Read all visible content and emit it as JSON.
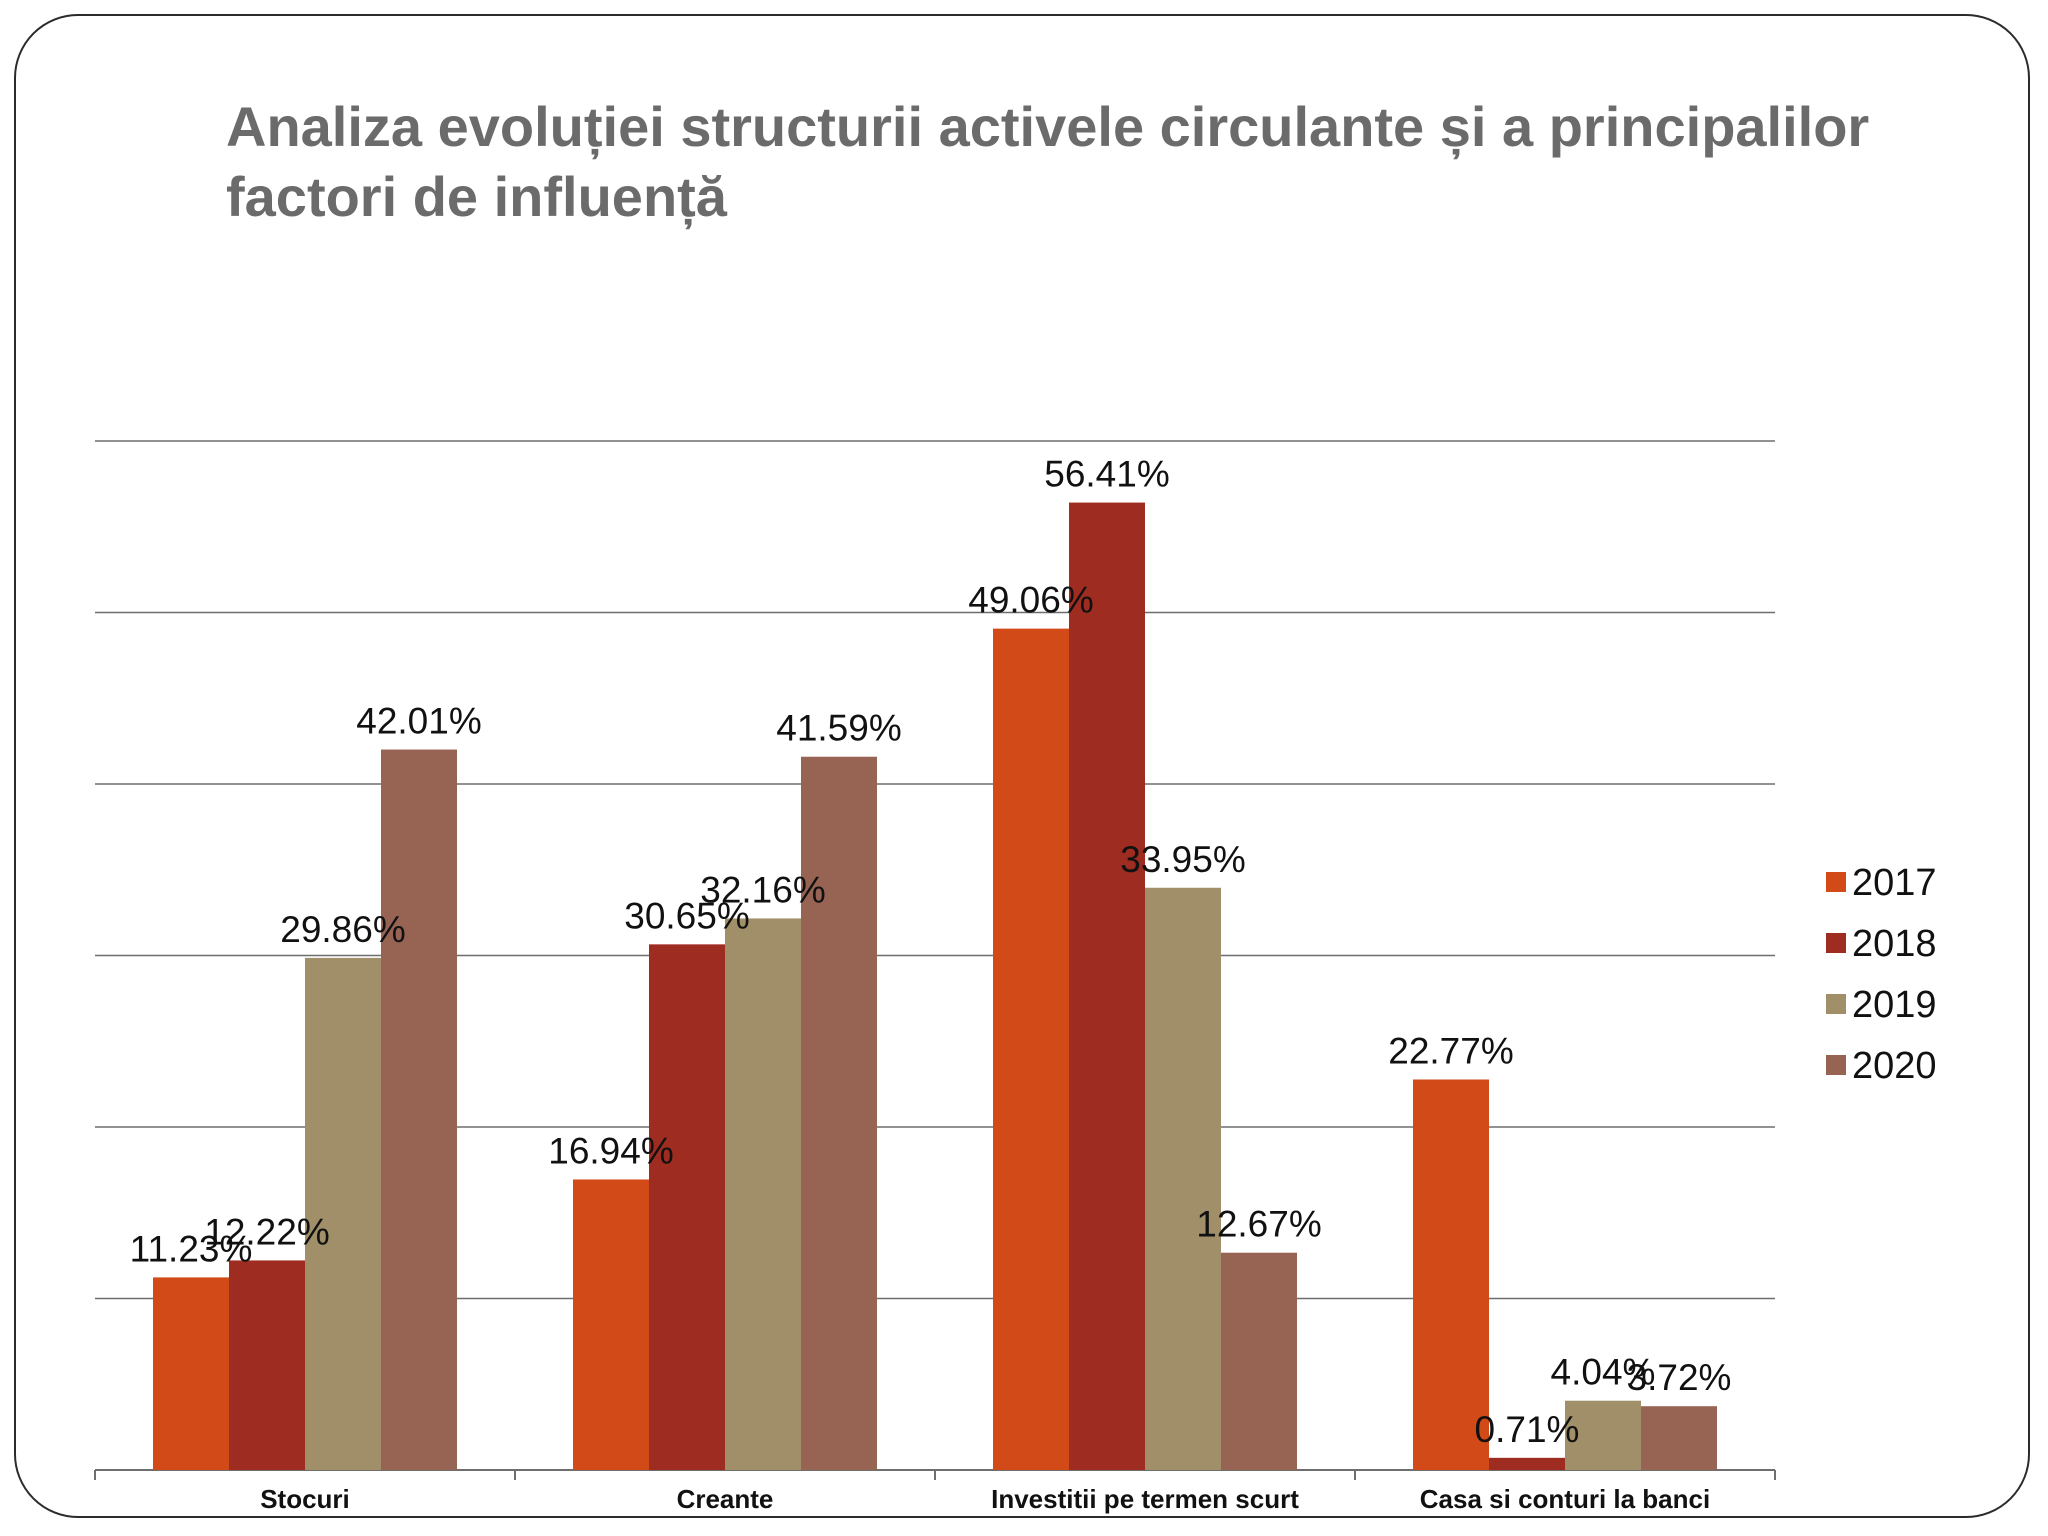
{
  "slide": {
    "title": "Analiza evoluției structurii activele circulante și a principalilor factori de influență"
  },
  "chart_data": {
    "type": "bar",
    "title": "",
    "xlabel": "",
    "ylabel": "",
    "categories": [
      "Stocuri",
      "Creante",
      "Investitii pe termen scurt",
      "Casa si conturi la banci"
    ],
    "series": [
      {
        "name": "2017",
        "color": "#d24a18",
        "values": [
          11.23,
          16.94,
          49.06,
          22.77
        ],
        "labels": [
          "11.23%",
          "16.94%",
          "49.06%",
          "22.77%"
        ]
      },
      {
        "name": "2018",
        "color": "#9e2c20",
        "values": [
          12.22,
          30.65,
          56.41,
          0.71
        ],
        "labels": [
          "12.22%",
          "30.65%",
          "56.41%",
          "0.71%"
        ]
      },
      {
        "name": "2019",
        "color": "#a08f68",
        "values": [
          29.86,
          32.16,
          33.95,
          4.04
        ],
        "labels": [
          "29.86%",
          "32.16%",
          "33.95%",
          "4.04%"
        ]
      },
      {
        "name": "2020",
        "color": "#976454",
        "values": [
          42.01,
          41.59,
          12.67,
          3.72
        ],
        "labels": [
          "42.01%",
          "41.59%",
          "12.67%",
          "3.72%"
        ]
      }
    ],
    "ylim": [
      0,
      60
    ],
    "grid": true,
    "legend": "right"
  }
}
